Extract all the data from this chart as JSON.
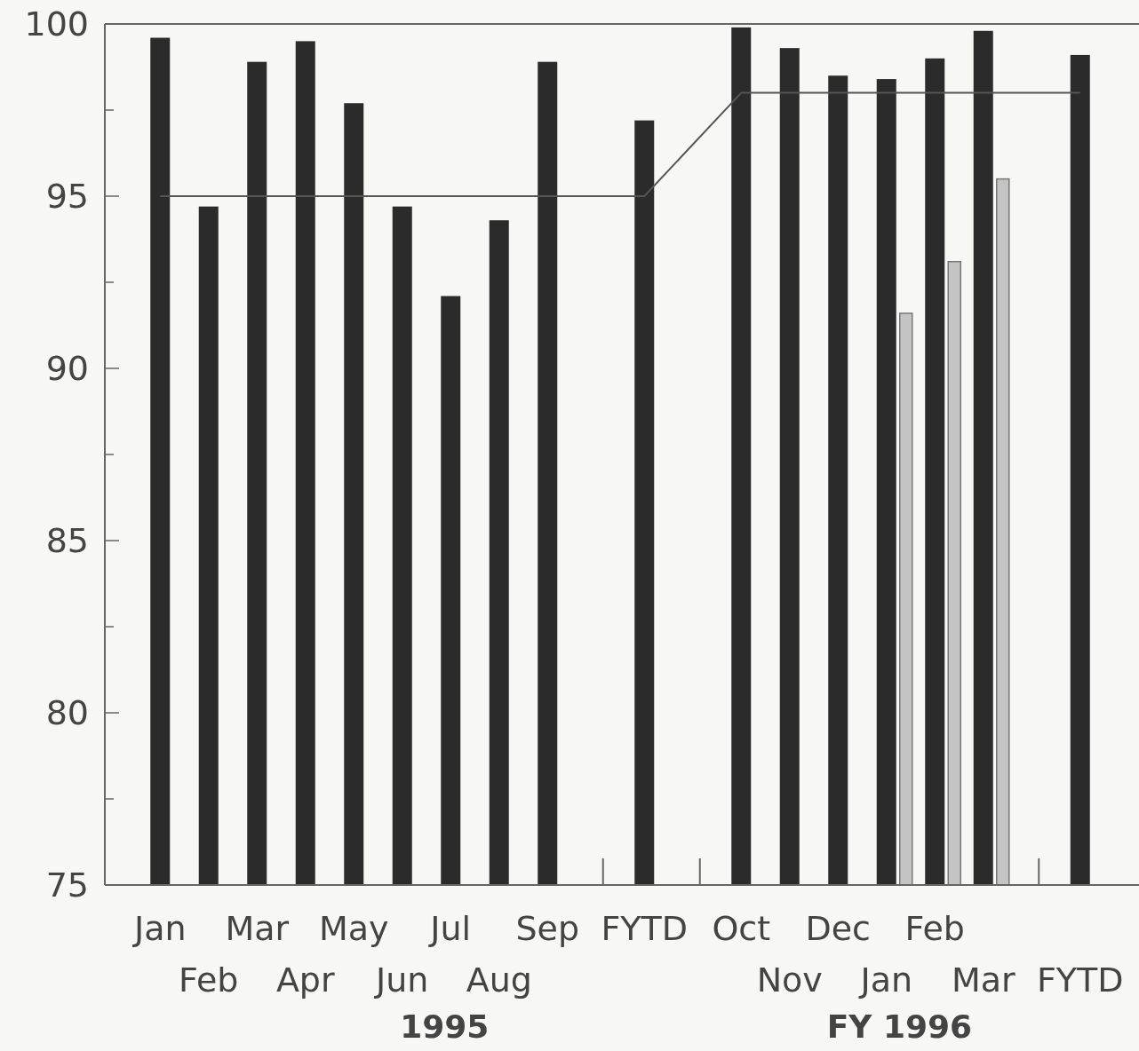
{
  "chart_data": {
    "type": "bar",
    "categories": [
      "Jan",
      "Feb",
      "Mar",
      "Apr",
      "May",
      "Jun",
      "Jul",
      "Aug",
      "Sep",
      null,
      "FYTD",
      null,
      "Oct",
      "Nov",
      "Dec",
      "Jan",
      "Feb",
      "Mar",
      null,
      "FYTD"
    ],
    "series": [
      {
        "color": "#2b2b2b",
        "values": [
          99.6,
          94.7,
          98.9,
          99.5,
          97.7,
          94.7,
          92.1,
          94.3,
          98.9,
          null,
          97.2,
          null,
          99.9,
          99.3,
          98.5,
          98.4,
          99.0,
          99.8,
          null,
          99.1
        ]
      },
      {
        "color": "#c4c4c4",
        "values": [
          null,
          null,
          null,
          null,
          null,
          null,
          null,
          null,
          null,
          null,
          null,
          null,
          null,
          null,
          null,
          91.6,
          93.1,
          95.5,
          null,
          null
        ]
      },
      {
        "type": "line",
        "color": "#555555",
        "values": [
          95,
          95,
          95,
          95,
          95,
          95,
          95,
          95,
          95,
          95,
          95,
          null,
          98,
          98,
          98,
          98,
          98,
          98,
          98,
          98
        ]
      }
    ],
    "ylim": [
      75,
      100
    ],
    "yticks": [
      75,
      {
        "value": 77.5,
        "label": null
      },
      80,
      {
        "value": 82.5,
        "label": null
      },
      85,
      {
        "value": 87.5,
        "label": null
      },
      90,
      {
        "value": 92.5,
        "label": null
      },
      95,
      {
        "value": 97.5,
        "label": null
      },
      100
    ],
    "annotations": [
      "1995",
      "FY 1996"
    ],
    "grid": false
  }
}
